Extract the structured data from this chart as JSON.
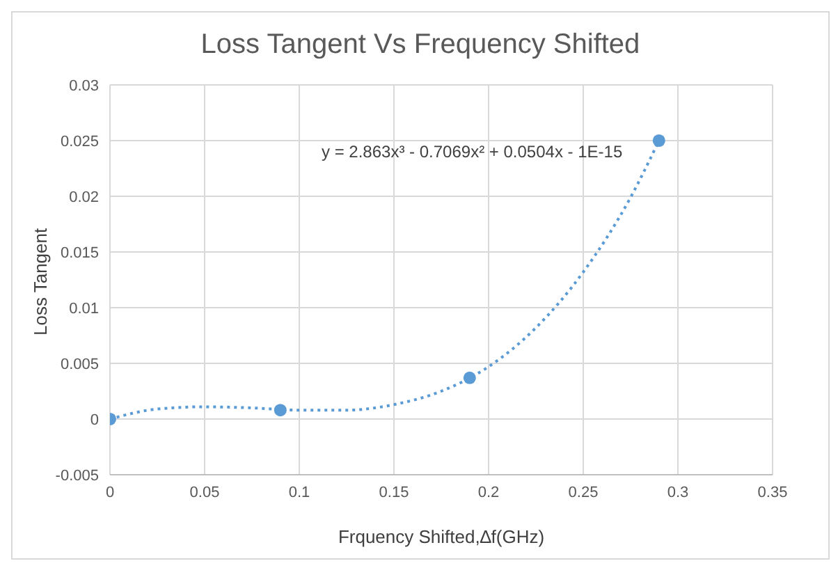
{
  "chart_data": {
    "type": "scatter",
    "title": "Loss Tangent Vs Frequency Shifted",
    "xlabel": "Frquency Shifted,∆f(GHz)",
    "ylabel": "Loss Tangent",
    "annotations": [
      "y = 2.863x³ - 0.7069x² + 0.0504x - 1E-15"
    ],
    "xlim": [
      0,
      0.35
    ],
    "xticks": [
      0,
      0.05,
      0.1,
      0.15,
      0.2,
      0.25,
      0.3,
      0.35
    ],
    "ylim": [
      -0.005,
      0.03
    ],
    "yticks": [
      -0.005,
      0,
      0.005,
      0.01,
      0.015,
      0.02,
      0.025,
      0.03
    ],
    "grid": true,
    "legend": false,
    "series": [
      {
        "color": "#5b9bd5",
        "marker": "circle",
        "x": [
          0,
          0.09,
          0.19,
          0.29
        ],
        "values": [
          0,
          0.0008,
          0.0037,
          0.025
        ]
      },
      {
        "type": "line",
        "color": "#5b9bd5",
        "marker": "none",
        "line_style": "dotted",
        "x": [
          0,
          0.025,
          0.05,
          0.075,
          0.1,
          0.125,
          0.15,
          0.175,
          0.2,
          0.225,
          0.25,
          0.275,
          0.29
        ],
        "values": [
          0,
          0.0009,
          0.0011,
          0.001,
          0.0008,
          0.0008,
          0.0013,
          0.0025,
          0.0047,
          0.0082,
          0.0132,
          0.0199,
          0.025
        ]
      }
    ]
  }
}
